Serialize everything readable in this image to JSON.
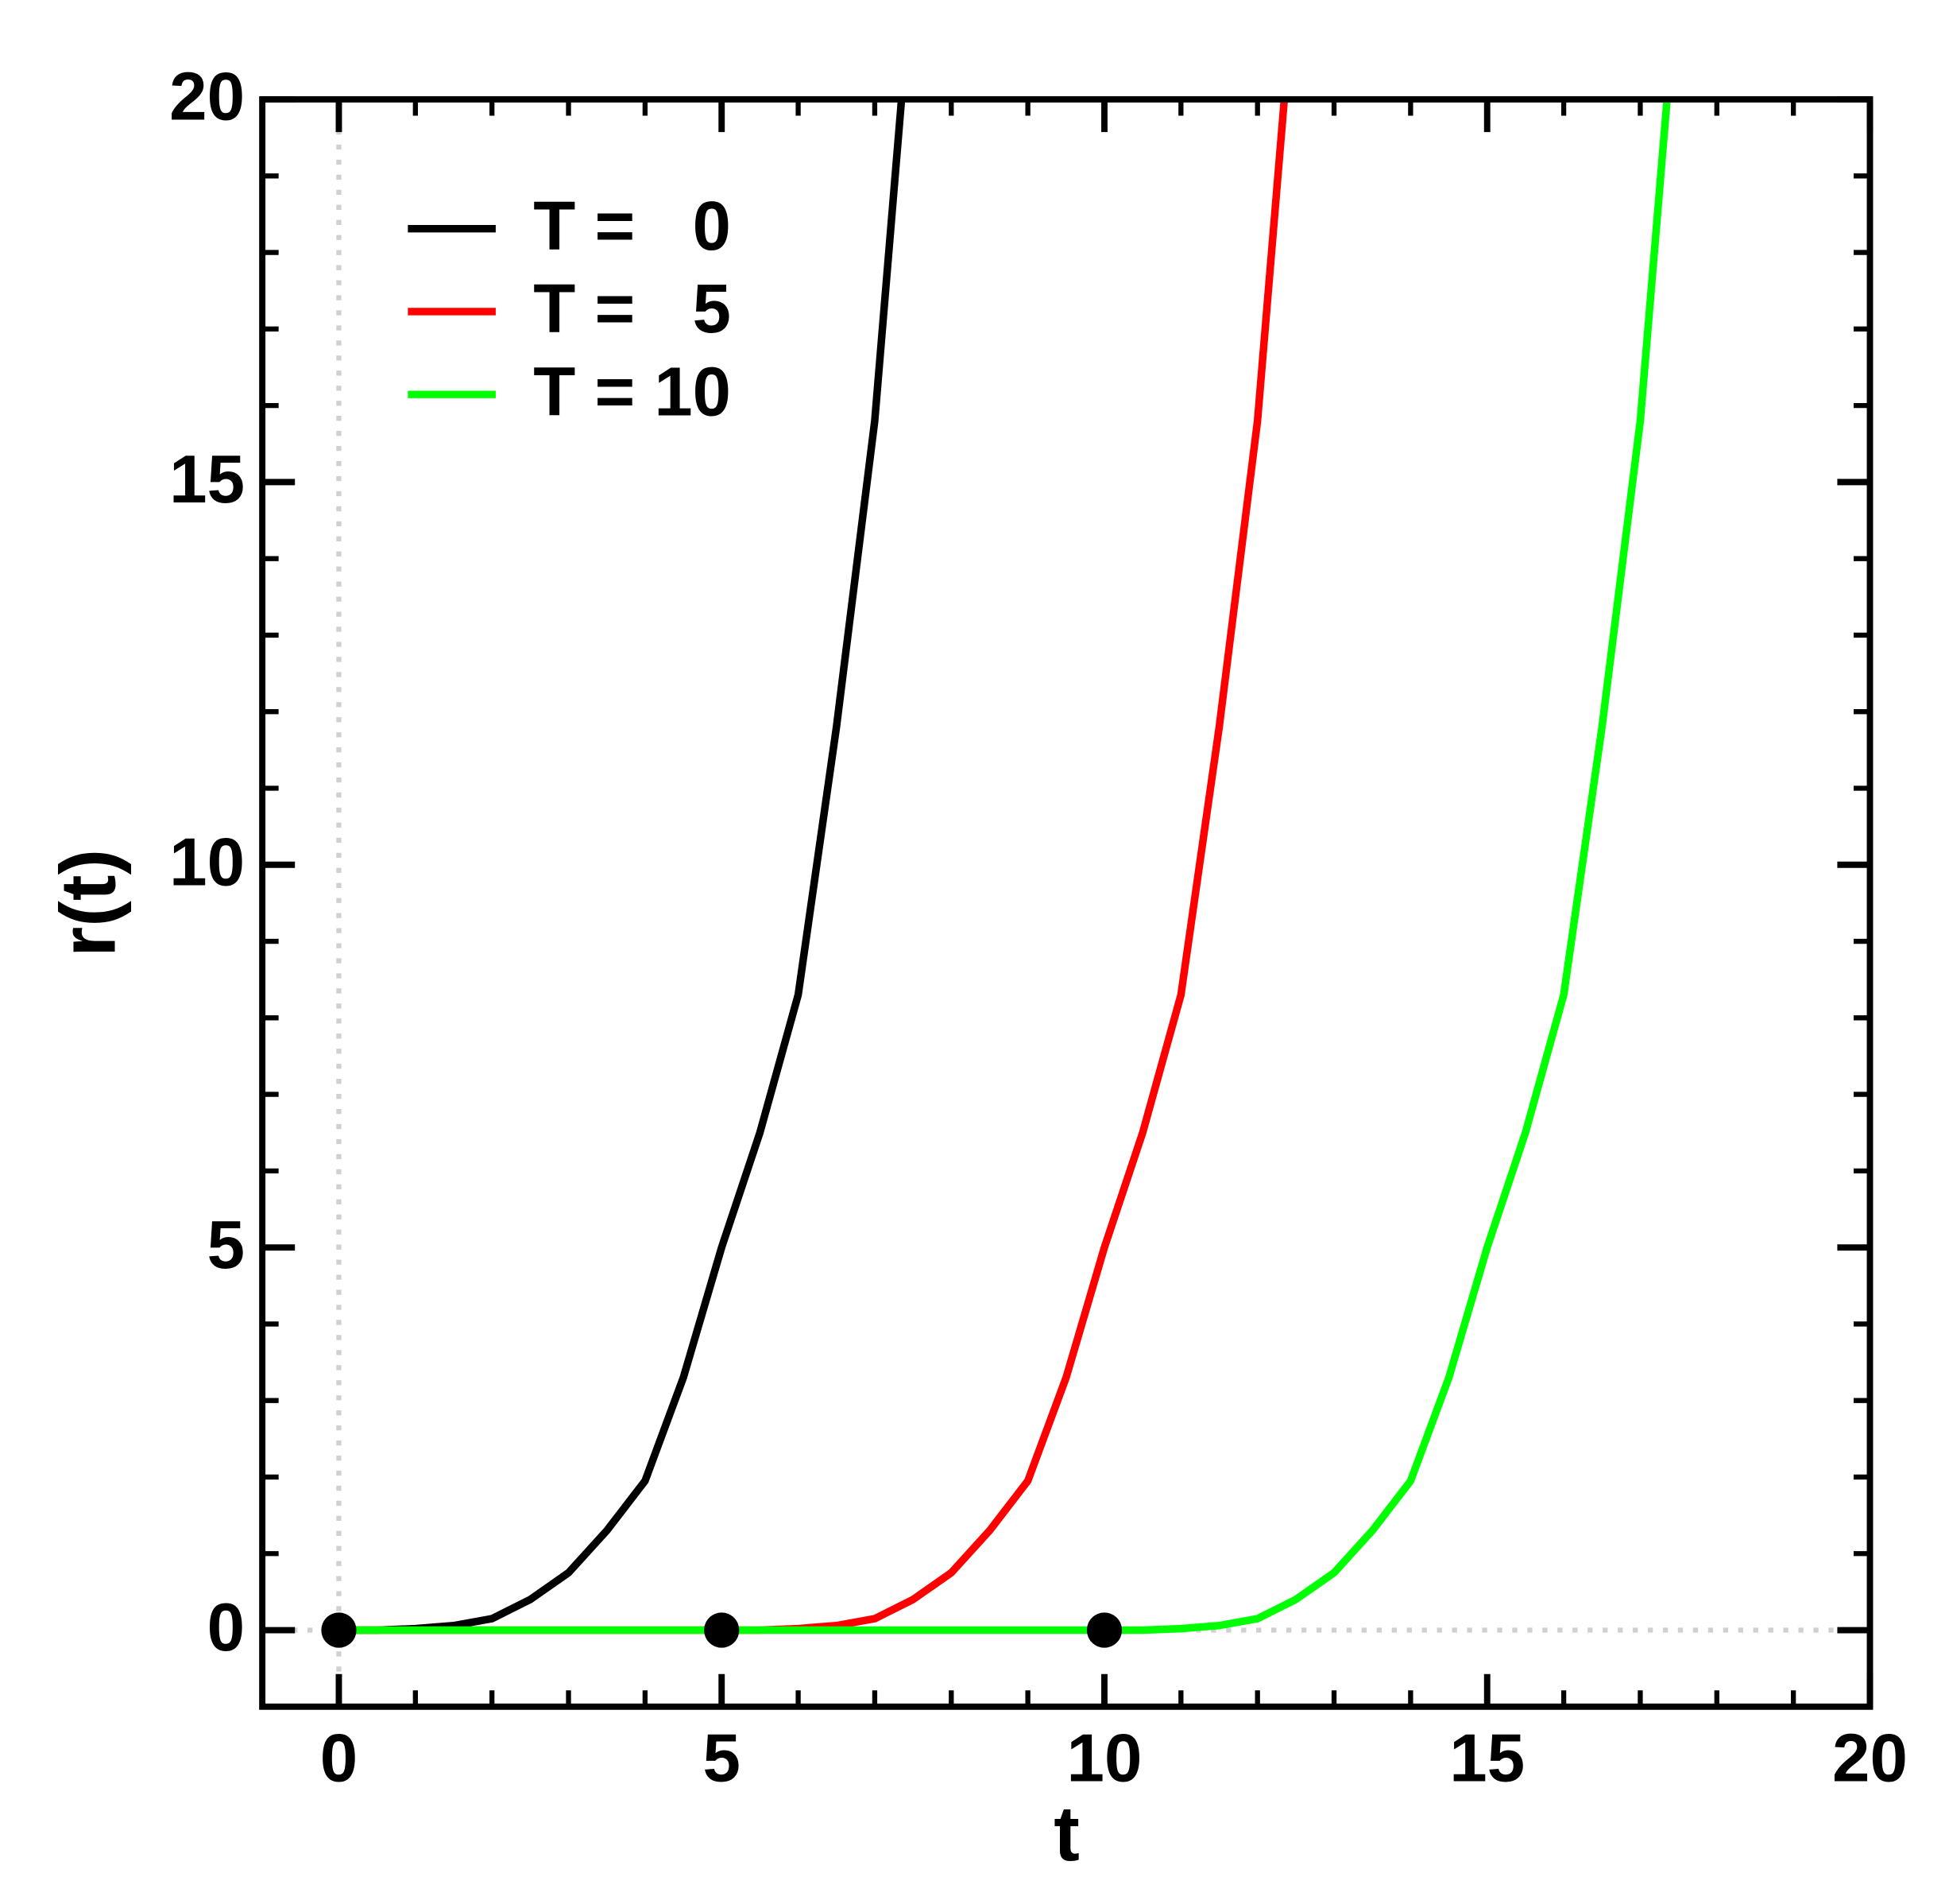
{
  "chart_data": {
    "type": "line",
    "xlabel": "t",
    "ylabel": "r(t)",
    "xlim": [
      -1,
      20
    ],
    "ylim": [
      -1,
      20
    ],
    "xticks": [
      0,
      5,
      10,
      15,
      20
    ],
    "yticks": [
      0,
      5,
      10,
      15,
      20
    ],
    "minor_tick_step": 1,
    "legend": "upper left",
    "zero_lines": true,
    "series": [
      {
        "name": "T =   0",
        "color": "#000000",
        "x": [
          0,
          0.5,
          1,
          1.5,
          2,
          2.5,
          3,
          3.5,
          4,
          4.5,
          5,
          5.5,
          6,
          6.5,
          7,
          7.35
        ],
        "values": [
          0,
          0,
          0.02,
          0.06,
          0.15,
          0.4,
          0.75,
          1.3,
          1.95,
          3.3,
          5,
          6.5,
          8.3,
          11.8,
          15.8,
          20
        ]
      },
      {
        "name": "T =   5",
        "color": "#ff0000",
        "x": [
          0,
          5,
          5.5,
          6,
          6.5,
          7,
          7.5,
          8,
          8.5,
          9,
          9.5,
          10,
          10.5,
          11,
          11.5,
          12,
          12.35
        ],
        "values": [
          0,
          0,
          0,
          0.02,
          0.06,
          0.15,
          0.4,
          0.75,
          1.3,
          1.95,
          3.3,
          5,
          6.5,
          8.3,
          11.8,
          15.8,
          20
        ]
      },
      {
        "name": "T = 10",
        "color": "#00ff00",
        "x": [
          0,
          10,
          10.5,
          11,
          11.5,
          12,
          12.5,
          13,
          13.5,
          14,
          14.5,
          15,
          15.5,
          16,
          16.5,
          17,
          17.35
        ],
        "values": [
          0,
          0,
          0,
          0.02,
          0.06,
          0.15,
          0.4,
          0.75,
          1.3,
          1.95,
          3.3,
          5,
          6.5,
          8.3,
          11.8,
          15.8,
          20
        ]
      }
    ],
    "points": {
      "color": "#000000",
      "x": [
        0,
        5,
        10
      ],
      "values": [
        0,
        0,
        0
      ]
    }
  }
}
